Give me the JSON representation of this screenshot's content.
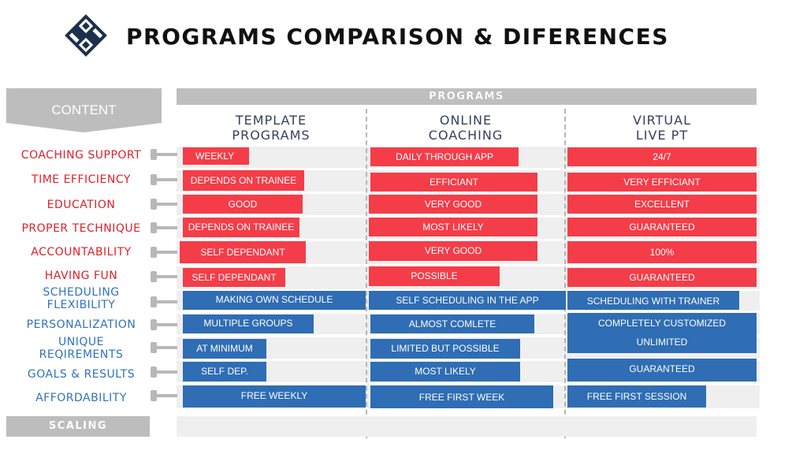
{
  "title": "PROGRAMS COMPARISON & DIFERENCES",
  "content_header": "CONTENT",
  "programs_header": "PROGRAMS",
  "columns": [
    {
      "line1": "TEMPLATE",
      "line2": "PROGRAMS"
    },
    {
      "line1": "ONLINE",
      "line2": "COACHING"
    },
    {
      "line1": "VIRTUAL",
      "line2": "LIVE PT"
    }
  ],
  "rows": [
    {
      "label": "COACHING SUPPORT",
      "color": "red",
      "cells": [
        "WEEKLY",
        "DAILY THROUGH APP",
        "24/7"
      ]
    },
    {
      "label": "TIME EFFICIENCY",
      "color": "red",
      "cells": [
        "DEPENDS ON TRAINEE",
        "EFFICIANT",
        "VERY EFFICIANT"
      ]
    },
    {
      "label": "EDUCATION",
      "color": "red",
      "cells": [
        "GOOD",
        "VERY GOOD",
        "EXCELLENT"
      ]
    },
    {
      "label": "PROPER TECHNIQUE",
      "color": "red",
      "cells": [
        "DEPENDS ON TRAINEE",
        "MOST LIKELY",
        "GUARANTEED"
      ]
    },
    {
      "label": "ACCOUNTABILITY",
      "color": "red",
      "cells": [
        "SELF DEPENDANT",
        "VERY GOOD",
        "100%"
      ]
    },
    {
      "label": "HAVING FUN",
      "color": "red",
      "cells": [
        "SELF DEPENDANT",
        "POSSIBLE",
        "GUARANTEED"
      ]
    },
    {
      "label_line1": "SCHEDULING",
      "label_line2": "FLEXIBILITY",
      "color": "blue",
      "cells": [
        "MAKING OWN SCHEDULE",
        "SELF SCHEDULING IN THE APP",
        "SCHEDULING WITH TRAINER"
      ]
    },
    {
      "label": "PERSONALIZATION",
      "color": "blue",
      "cells": [
        "MULTIPLE GROUPS",
        "ALMOST COMLETE",
        "COMPLETELY CUSTOMIZED"
      ]
    },
    {
      "label_line1": "UNIQUE",
      "label_line2": "REQIREMENTS",
      "color": "blue",
      "cells": [
        "AT MINIMUM",
        "LIMITED BUT POSSIBLE",
        "UNLIMITED"
      ]
    },
    {
      "label": "GOALS & RESULTS",
      "color": "blue",
      "cells": [
        "SELF DEP.",
        "MOST LIKELY",
        "GUARANTEED"
      ]
    },
    {
      "label": "AFFORDABILITY",
      "color": "blue",
      "cells": [
        "FREE WEEKLY",
        "FREE FIRST WEEK",
        "FREE FIRST SESSION"
      ]
    }
  ],
  "scaling_label": "SCALING",
  "colors": {
    "red": "#f43d48",
    "blue": "#2f6db4",
    "red_text": "#e0202a",
    "blue_text": "#2f73b8",
    "gray": "#bdbdbd"
  },
  "icons": {
    "logo": "logo-icon"
  }
}
